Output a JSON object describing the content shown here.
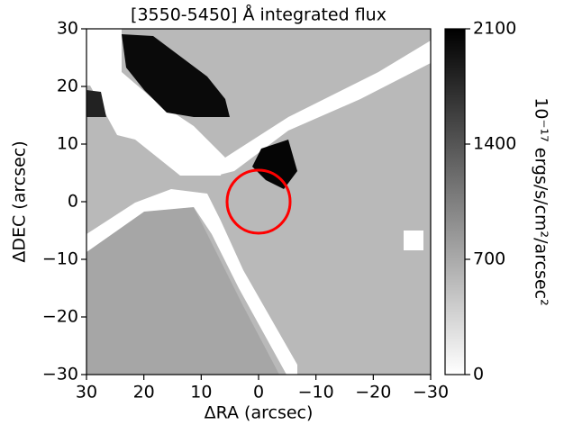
{
  "chart_data": {
    "type": "image",
    "title": "[3550-5450] Å integrated flux",
    "xlabel": "ΔRA (arcsec)",
    "ylabel": "ΔDEC (arcsec)",
    "xlim": [
      30,
      -30
    ],
    "ylim": [
      -30,
      30
    ],
    "xticks": [
      30,
      20,
      10,
      0,
      {
        "value": -10,
        "label": "−10"
      },
      {
        "value": -20,
        "label": "−20"
      },
      {
        "value": -30,
        "label": "−30"
      }
    ],
    "yticks": [
      {
        "value": -30,
        "label": "−30"
      },
      {
        "value": -20,
        "label": "−20"
      },
      {
        "value": -10,
        "label": "−10"
      },
      0,
      10,
      20,
      30
    ],
    "circle": {
      "x": 0,
      "y": 0,
      "radius": 5.5,
      "color": "#ff0000"
    },
    "colorbar": {
      "clim": [
        0,
        2100
      ],
      "ticks": [
        0,
        700,
        1400,
        2100
      ],
      "label": "10⁻¹⁷ ergs/s/cm²/arcsec²",
      "colors": [
        "#ffffff",
        "#000000"
      ]
    }
  }
}
